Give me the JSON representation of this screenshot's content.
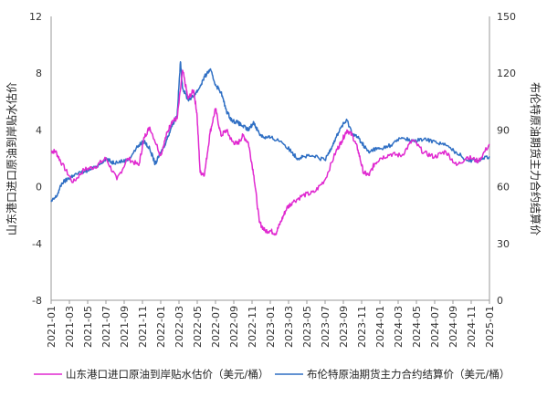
{
  "chart_data": {
    "type": "line",
    "title": "",
    "x_labels": [
      "2021-01",
      "2021-03",
      "2021-05",
      "2021-07",
      "2021-09",
      "2021-11",
      "2022-01",
      "2022-03",
      "2022-05",
      "2022-07",
      "2022-09",
      "2022-11",
      "2023-01",
      "2023-03",
      "2023-05",
      "2023-07",
      "2023-09",
      "2023-11",
      "2024-01",
      "2024-03",
      "2024-05",
      "2024-07",
      "2024-09",
      "2024-11",
      "2025-01"
    ],
    "left_axis": {
      "label": "山东港口进口原油到岸贴水估价",
      "ylim": [
        -8,
        12
      ],
      "ticks": [
        "-8",
        "-4",
        "0",
        "4",
        "8",
        "12"
      ]
    },
    "right_axis": {
      "label": "布伦特原油期货主力合约结算价",
      "ylim": [
        0,
        150
      ],
      "ticks": [
        "0",
        "30",
        "60",
        "90",
        "120",
        "150"
      ]
    },
    "grid": false,
    "legend_position": "bottom",
    "series": [
      {
        "name": "山东港口进口原油到岸贴水估价（美元/桶）",
        "axis": "left",
        "color": "#E029D0",
        "x": [
          2021.0,
          2021.04,
          2021.1,
          2021.2,
          2021.3,
          2021.4,
          2021.5,
          2021.6,
          2021.7,
          2021.8,
          2021.85,
          2021.9,
          2022.0,
          2022.05,
          2022.1,
          2022.15,
          2022.2,
          2022.25,
          2022.3,
          2022.33,
          2022.36,
          2022.4,
          2022.45,
          2022.5,
          2022.55,
          2022.6,
          2022.65,
          2022.7,
          2022.75,
          2022.8,
          2022.85,
          2022.9,
          2022.95,
          2023.0,
          2023.05,
          2023.1,
          2023.15,
          2023.2,
          2023.3,
          2023.4,
          2023.5,
          2023.6,
          2023.65,
          2023.7,
          2023.75,
          2023.8,
          2023.85,
          2023.9,
          2023.95,
          2024.0,
          2024.1,
          2024.2,
          2024.3,
          2024.4,
          2024.5,
          2024.6,
          2024.7,
          2024.8,
          2024.9,
          2025.0
        ],
        "values": [
          2.5,
          2.5,
          1.6,
          0.3,
          1.2,
          1.4,
          2.0,
          0.5,
          2.0,
          1.5,
          3.5,
          4.2,
          2.2,
          3.6,
          4.6,
          4.8,
          8.2,
          6.2,
          6.8,
          5.2,
          1.0,
          0.9,
          3.8,
          5.5,
          3.6,
          4.0,
          3.2,
          3.0,
          3.6,
          3.1,
          0.8,
          -2.5,
          -3.1,
          -3.1,
          -3.3,
          -2.4,
          -1.5,
          -1.1,
          -0.6,
          -0.4,
          0.5,
          2.5,
          3.2,
          4.0,
          3.6,
          2.6,
          1.0,
          0.8,
          1.6,
          2.0,
          2.3,
          2.2,
          3.3,
          2.4,
          2.1,
          2.5,
          1.5,
          2.1,
          1.8,
          3.0
        ]
      },
      {
        "name": "布伦特原油期货主力合约结算价（美元/桶）",
        "axis": "right",
        "color": "#2F6FC4",
        "x": [
          2021.0,
          2021.05,
          2021.1,
          2021.15,
          2021.2,
          2021.3,
          2021.4,
          2021.5,
          2021.55,
          2021.6,
          2021.7,
          2021.8,
          2021.85,
          2021.9,
          2021.95,
          2022.0,
          2022.05,
          2022.1,
          2022.15,
          2022.18,
          2022.2,
          2022.25,
          2022.3,
          2022.35,
          2022.4,
          2022.45,
          2022.5,
          2022.55,
          2022.6,
          2022.65,
          2022.7,
          2022.75,
          2022.8,
          2022.85,
          2022.9,
          2022.95,
          2023.0,
          2023.1,
          2023.2,
          2023.25,
          2023.3,
          2023.4,
          2023.5,
          2023.55,
          2023.6,
          2023.65,
          2023.7,
          2023.75,
          2023.8,
          2023.85,
          2023.9,
          2023.95,
          2024.0,
          2024.1,
          2024.2,
          2024.3,
          2024.4,
          2024.5,
          2024.6,
          2024.7,
          2024.8,
          2024.9,
          2025.0
        ],
        "values": [
          52,
          55,
          62,
          64,
          66,
          68,
          70,
          75,
          73,
          73,
          74,
          82,
          84,
          80,
          72,
          78,
          84,
          92,
          98,
          126,
          112,
          106,
          108,
          112,
          118,
          122,
          114,
          110,
          100,
          95,
          94,
          92,
          90,
          94,
          88,
          86,
          86,
          84,
          78,
          75,
          76,
          76,
          74,
          80,
          86,
          92,
          95,
          88,
          86,
          82,
          78,
          80,
          80,
          82,
          86,
          84,
          85,
          84,
          82,
          78,
          74,
          74,
          76
        ]
      }
    ]
  }
}
